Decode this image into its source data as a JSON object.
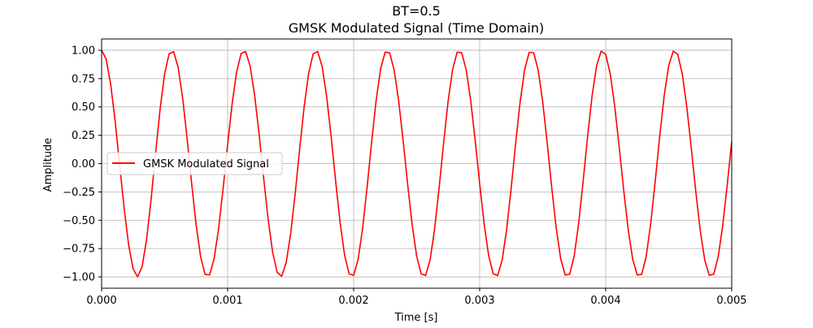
{
  "chart_data": {
    "type": "line",
    "title_line1": "BT=0.5",
    "title_line2": "GMSK Modulated Signal (Time Domain)",
    "xlabel": "Time [s]",
    "ylabel": "Amplitude",
    "xlim": [
      0,
      0.005
    ],
    "ylim": [
      -1.1,
      1.1
    ],
    "xticks": [
      0,
      0.001,
      0.002,
      0.003,
      0.004,
      0.005
    ],
    "xtick_labels": [
      "0.000",
      "0.001",
      "0.002",
      "0.003",
      "0.004",
      "0.005"
    ],
    "yticks": [
      -1.0,
      -0.75,
      -0.5,
      -0.25,
      0.0,
      0.25,
      0.5,
      0.75,
      1.0
    ],
    "ytick_labels": [
      "−1.00",
      "−0.75",
      "−0.50",
      "−0.25",
      "0.00",
      "0.25",
      "0.50",
      "0.75",
      "1.00"
    ],
    "grid": true,
    "legend": {
      "location": "center-left",
      "label": "GMSK Modulated Signal"
    },
    "series": [
      {
        "name": "GMSK Modulated Signal",
        "color": "#ff0000",
        "peak_times": [
          0.0,
          0.000557,
          0.001129,
          0.001701,
          0.002266,
          0.002838,
          0.00341,
          0.003975,
          0.004547
        ],
        "trough_times": [
          0.000284,
          0.00084,
          0.001419,
          0.001985,
          0.002557,
          0.003129,
          0.003695,
          0.004267,
          0.004837
        ],
        "end_time": 0.005,
        "end_value": 0.18,
        "sample_count": 140
      }
    ]
  }
}
